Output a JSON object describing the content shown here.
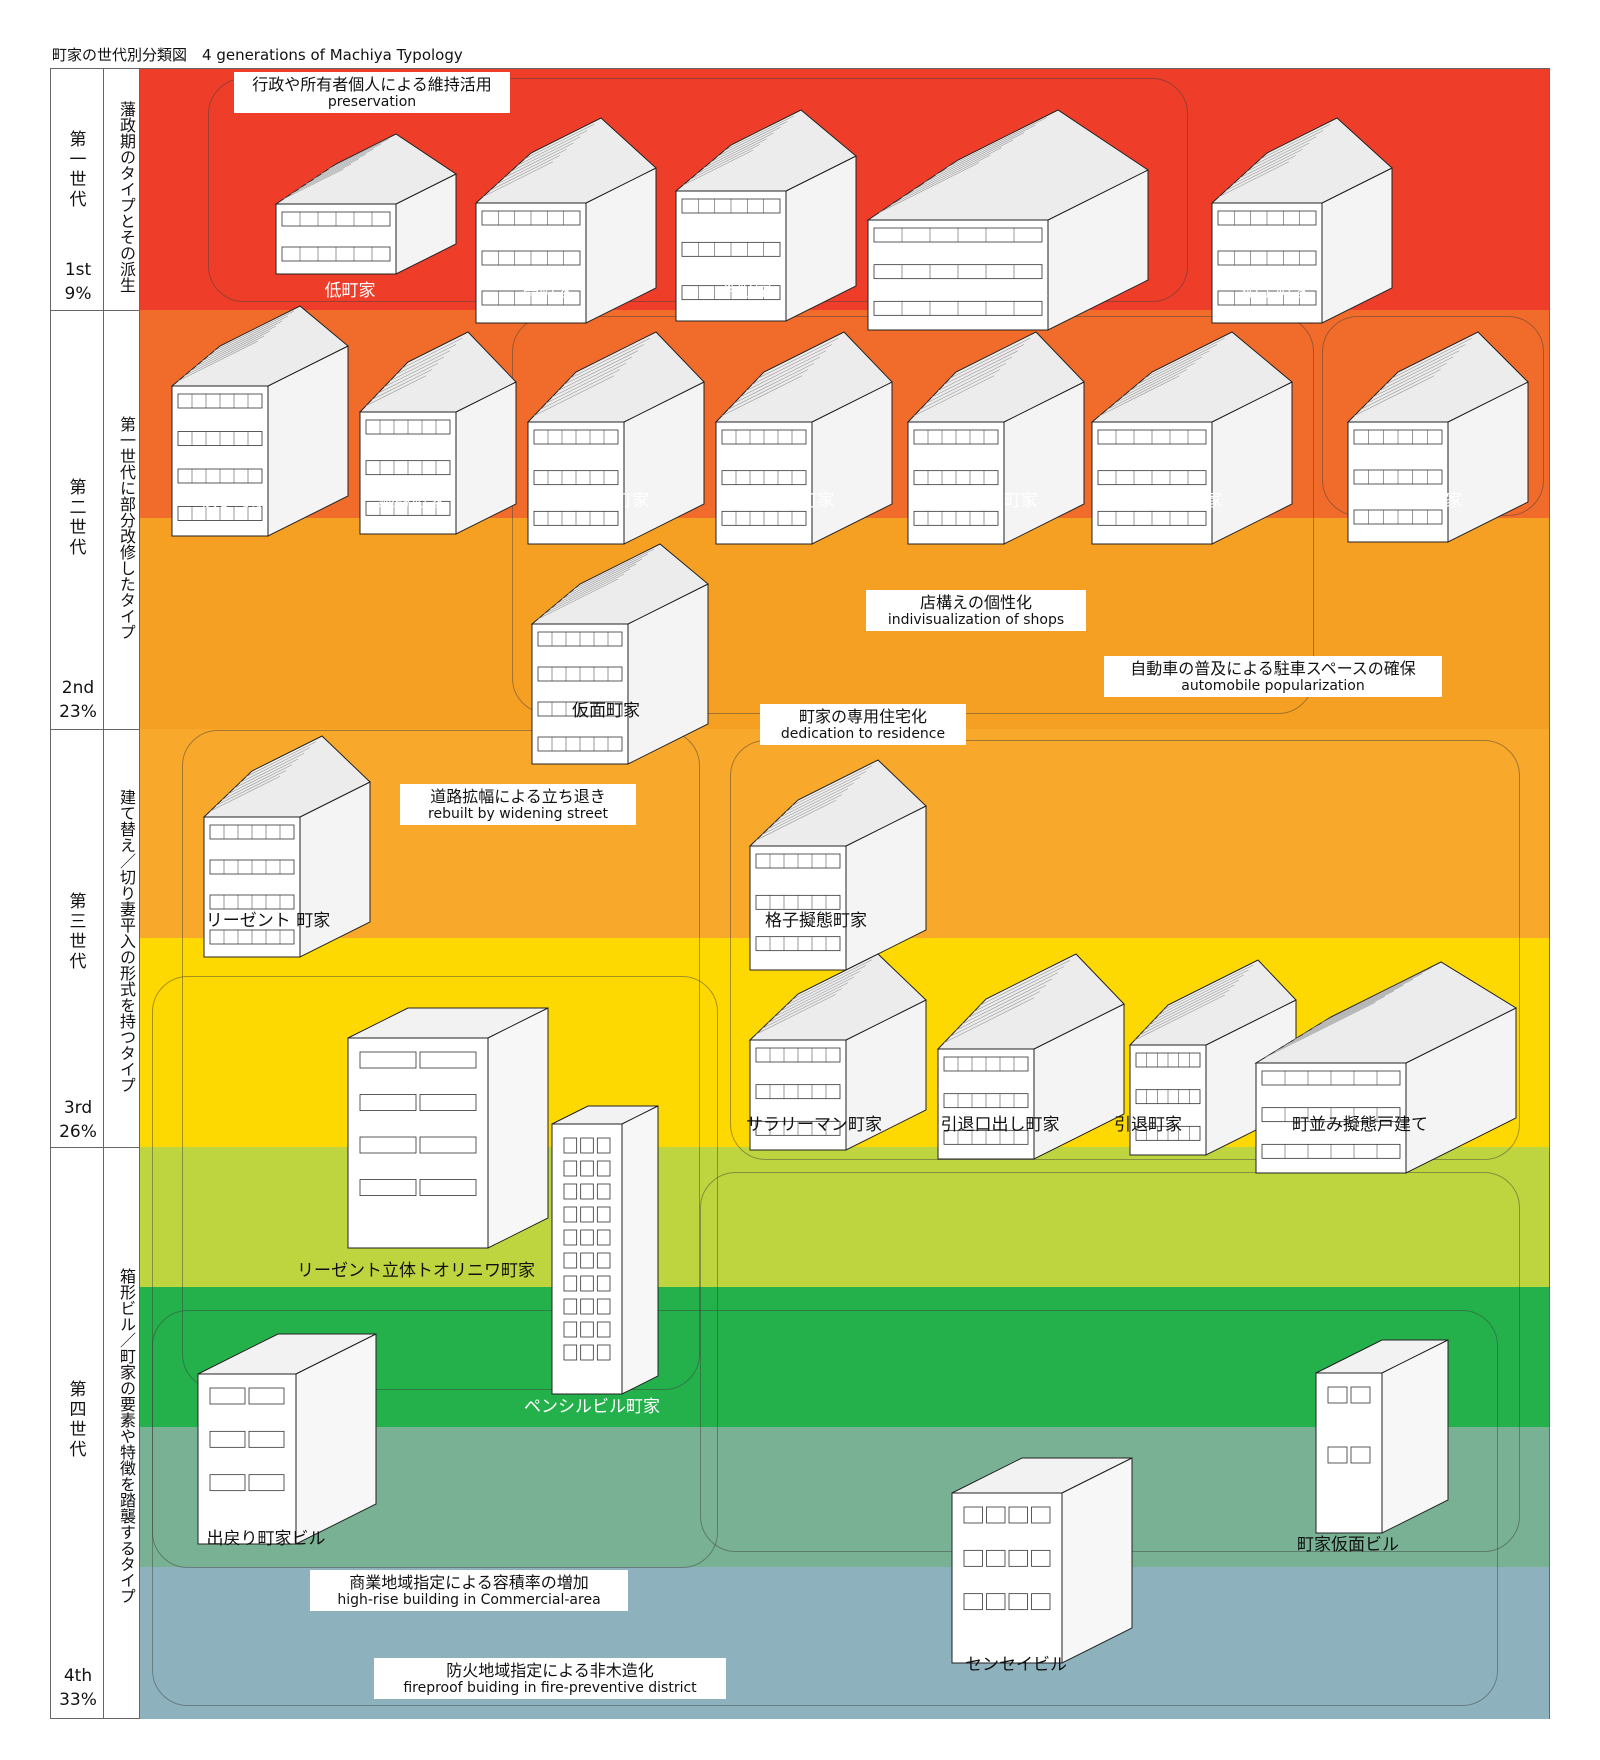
{
  "title": "町家の世代別分類図　4 generations of Machiya Typology",
  "colors": {
    "gen1": "#ee3e2a",
    "gen2a": "#f16c2b",
    "gen2b": "#f6a023",
    "gen3a": "#f8a82a",
    "gen3b": "#fdd901",
    "gen4a": "#bed53f",
    "gen4b": "#24b14b",
    "gen4c": "#78b193",
    "gen4d": "#8db2bd"
  },
  "generations": [
    {
      "num": "第\n一\n世\n代",
      "sub": "藩政期のタイプとその派生",
      "pct_line1": "1st",
      "pct_line2": "9%"
    },
    {
      "num": "第\n二\n世\n代",
      "sub": "第一世代に部分改修したタイプ",
      "pct_line1": "2nd",
      "pct_line2": "23%"
    },
    {
      "num": "第\n三\n世\n代",
      "sub": "建て替え／切り妻平入の形式を持つタイプ",
      "pct_line1": "3rd",
      "pct_line2": "26%"
    },
    {
      "num": "第\n四\n世\n代",
      "sub": "箱形ビル／町家の要素や特徴を踏襲するタイプ",
      "pct_line1": "4th",
      "pct_line2": "33%"
    }
  ],
  "tags": [
    {
      "jp": "行政や所有者個人による維持活用",
      "en": "preservation"
    },
    {
      "jp": "店構えの個性化",
      "en": "indivisualization of shops"
    },
    {
      "jp": "自動車の普及による駐車スペースの確保",
      "en": "automobile popularization"
    },
    {
      "jp": "町家の専用住宅化",
      "en": "dedication to residence"
    },
    {
      "jp": "道路拡幅による立ち退き",
      "en": "rebuilt by widening street"
    },
    {
      "jp": "商業地域指定による容積率の増加",
      "en": "high-rise building in Commercial-area"
    },
    {
      "jp": "防火地域指定による非木造化",
      "en": "fireproof buiding in fire-preventive district"
    }
  ],
  "labels": [
    "低町家",
    "高町家",
    "茶町家",
    "塗り枠町家",
    "硝子町家",
    "横丁町家",
    "銀縁町家",
    "つけヒゲ町家",
    "目隠し町家",
    "くちマスク町家",
    "細分割町家",
    "スカイ町家",
    "仮面町家",
    "リーゼント 町家",
    "格子擬態町家",
    "サラリーマン町家",
    "引退口出し町家",
    "引退町家",
    "町並み擬態戸建て",
    "リーゼント立体トオリニワ町家",
    "ペンシルビル町家",
    "出戻り町家ビル",
    "町家仮面ビル",
    "センセイビル"
  ]
}
